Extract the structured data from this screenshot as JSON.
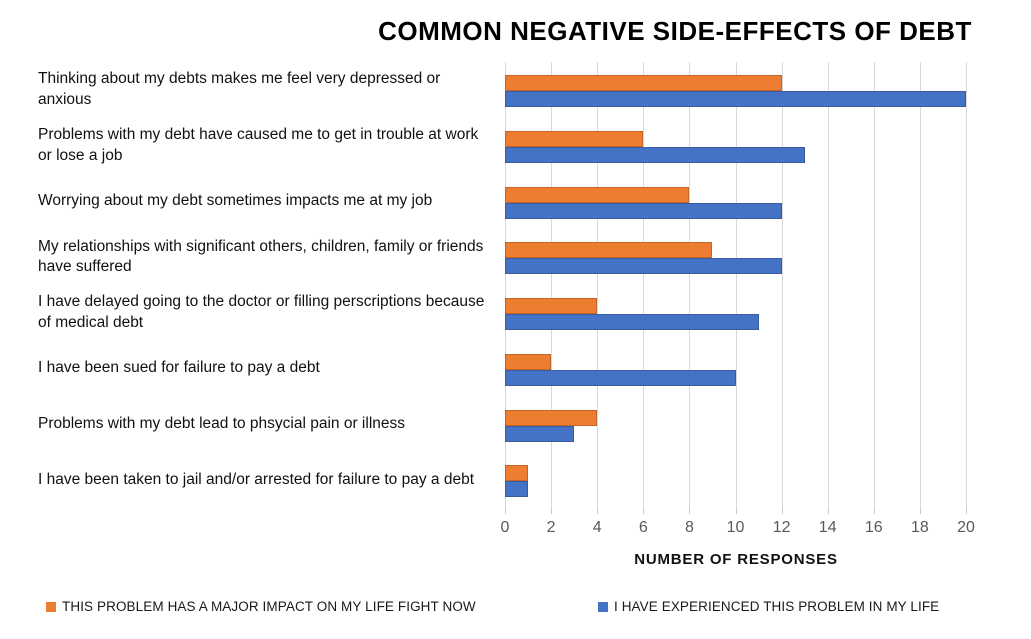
{
  "title": "COMMON NEGATIVE SIDE-EFFECTS OF DEBT",
  "chart_data": {
    "type": "bar",
    "orientation": "horizontal",
    "title": "COMMON NEGATIVE SIDE-EFFECTS OF DEBT",
    "xlabel": "NUMBER OF RESPONSES",
    "ylabel": "",
    "xlim": [
      0,
      20
    ],
    "xticks": [
      0,
      2,
      4,
      6,
      8,
      10,
      12,
      14,
      16,
      18,
      20
    ],
    "grid": true,
    "legend_position": "bottom",
    "categories": [
      "Thinking about my debts makes me feel very depressed or anxious",
      "Problems with my debt have caused me to get in trouble at work or lose a job",
      "Worrying about my debt sometimes impacts me at my job",
      "My relationships with significant others, children, family or friends have suffered",
      "I have delayed going to the doctor or filling perscriptions because of medical debt",
      "I have been sued for failure to pay a debt",
      "Problems with my debt lead to phsycial pain or illness",
      "I have been taken to jail and/or arrested for failure to pay a debt"
    ],
    "series": [
      {
        "name": "THIS PROBLEM HAS A MAJOR IMPACT ON MY LIFE FIGHT NOW",
        "color": "#ED7D31",
        "values": [
          12,
          6,
          8,
          9,
          4,
          2,
          4,
          1
        ]
      },
      {
        "name": "I HAVE EXPERIENCED THIS PROBLEM IN MY LIFE",
        "color": "#4472C4",
        "values": [
          20,
          13,
          12,
          12,
          11,
          10,
          3,
          1
        ]
      }
    ],
    "colors": {
      "gridline": "#D9D9D9",
      "tick_label": "#595959",
      "category_label": "#111111",
      "title": "#000000"
    }
  }
}
